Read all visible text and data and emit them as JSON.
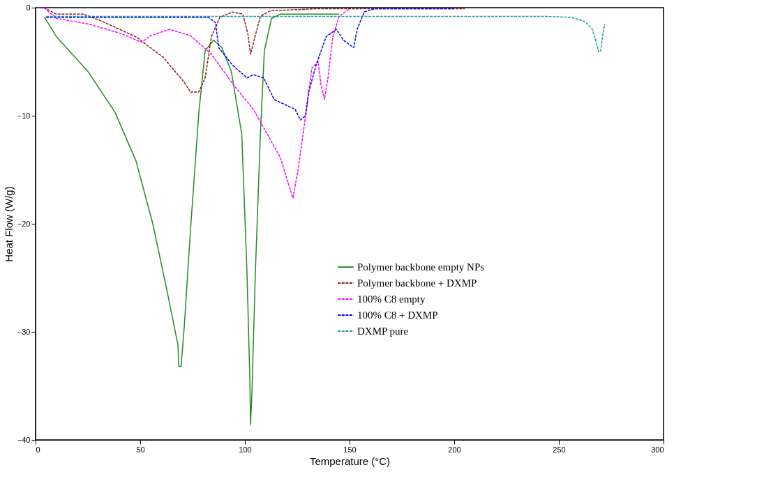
{
  "chart_data": {
    "type": "line",
    "xlabel": "Temperature (°C)",
    "ylabel": "Heat Flow (W/g)",
    "xlim": [
      0,
      300
    ],
    "xticks": [
      0,
      50,
      100,
      150,
      200,
      250,
      300
    ],
    "ylim": [
      -40,
      0
    ],
    "yticks": [
      -40,
      -30,
      -20,
      -10,
      0
    ],
    "grid": false,
    "legend": "right",
    "marker": "none",
    "series": [
      {
        "name": "Polymer backbone empty NPs",
        "color": "#228b22",
        "line_style": "solid",
        "x": [
          4.3,
          10,
          25,
          38,
          48,
          56,
          63,
          68,
          68.5,
          69.5,
          71,
          74,
          78,
          81,
          85,
          89,
          93.5,
          98.5,
          101,
          102.4,
          102.7,
          103.4,
          105,
          107.4,
          109.3,
          112.7,
          117,
          145
        ],
        "values": [
          -0.9,
          -2.7,
          -5.9,
          -9.7,
          -14.2,
          -20,
          -26.4,
          -31.2,
          -33.2,
          -33.2,
          -29.6,
          -20.6,
          -9.7,
          -4,
          -3,
          -3.7,
          -5.9,
          -11.7,
          -24.5,
          -34.7,
          -38.6,
          -35.4,
          -24.5,
          -11.7,
          -4,
          -1,
          -0.6,
          -0.6
        ]
      },
      {
        "name": "Polymer backbone + DXMP",
        "color": "#8b1a1a",
        "line_style": "dashed",
        "x": [
          4,
          10,
          23,
          31,
          48,
          61,
          71,
          74,
          78,
          81,
          84,
          88,
          94,
          99,
          101.4,
          102.7,
          104.4,
          107.4,
          112,
          134,
          205
        ],
        "values": [
          0,
          -0.6,
          -0.6,
          -1.2,
          -2.7,
          -4.6,
          -6.9,
          -7.8,
          -7.8,
          -6.5,
          -2.7,
          -0.9,
          -0.4,
          -0.6,
          -2.4,
          -4.3,
          -3,
          -0.8,
          -0.3,
          -0.1,
          -0.1
        ]
      },
      {
        "name": "100% C8 empty",
        "color": "#ff00ff",
        "line_style": "dashed",
        "x": [
          4,
          10,
          25,
          41,
          50.5,
          55,
          64,
          74,
          84,
          94,
          104,
          110.7,
          117,
          120.6,
          123,
          125.5,
          129,
          132,
          135,
          136.4,
          138,
          139.7,
          142,
          145,
          150
        ],
        "values": [
          0,
          -1,
          -1.5,
          -2.4,
          -3.2,
          -2.6,
          -2,
          -2.6,
          -4.3,
          -7,
          -9.4,
          -11.7,
          -13.9,
          -16.2,
          -17.6,
          -14.9,
          -10,
          -5.6,
          -5,
          -7.2,
          -8.5,
          -6.5,
          -2.7,
          -0.8,
          -0.1
        ]
      },
      {
        "name": "100% C8 + DXMP",
        "color": "#0000ff",
        "line_style": "dashed",
        "x": [
          5,
          82.6,
          86,
          87.5,
          94,
          101,
          104,
          109,
          114,
          120.6,
          124,
          126.5,
          129,
          130.5,
          134,
          138.8,
          143.7,
          147,
          152,
          153.6,
          157,
          162,
          200
        ],
        "values": [
          -0.9,
          -0.9,
          -1.4,
          -3.7,
          -5.3,
          -6.5,
          -6.2,
          -6.5,
          -8.5,
          -9.1,
          -9.4,
          -10.4,
          -10,
          -7.8,
          -5.3,
          -2.7,
          -2,
          -3,
          -3.7,
          -2,
          -0.4,
          -0.1,
          -0.1
        ]
      },
      {
        "name": "DXMP pure",
        "color": "#1e9a9a",
        "line_style": "dashed",
        "x": [
          5,
          243,
          256,
          262.6,
          266,
          267.6,
          269,
          270,
          271,
          272
        ],
        "values": [
          -0.8,
          -0.8,
          -0.9,
          -1.3,
          -2,
          -3,
          -4.1,
          -4,
          -2.4,
          -1.5
        ]
      }
    ]
  }
}
